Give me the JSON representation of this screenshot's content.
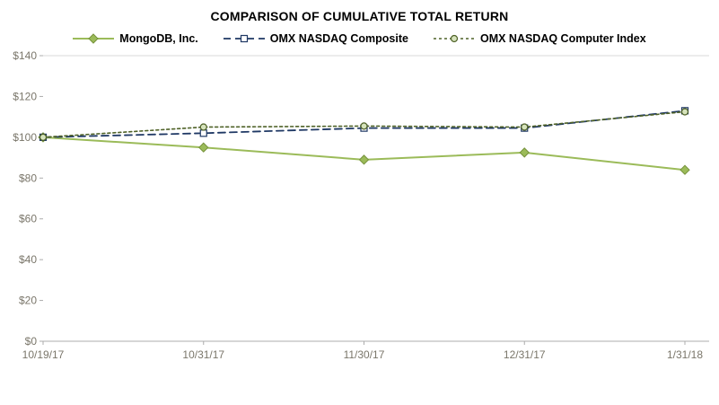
{
  "title": "COMPARISON OF CUMULATIVE TOTAL RETURN",
  "chart_data": {
    "type": "line",
    "title": "COMPARISON OF CUMULATIVE TOTAL RETURN",
    "x": [
      "10/19/17",
      "10/31/17",
      "11/30/17",
      "12/31/17",
      "1/31/18"
    ],
    "series": [
      {
        "name": "MongoDB, Inc.",
        "values": [
          100,
          95,
          89,
          92.5,
          84
        ],
        "color": "#9BBB59",
        "dash": "solid",
        "marker": "diamond",
        "marker_fill": "#9BBB59",
        "marker_stroke": "#76923C",
        "width": 2
      },
      {
        "name": "OMX NASDAQ Composite",
        "values": [
          100,
          102,
          104.5,
          104.5,
          113
        ],
        "color": "#1F3864",
        "dash": "dashed",
        "marker": "square",
        "marker_fill": "#FFFFFF",
        "marker_stroke": "#1F3864",
        "width": 1.8
      },
      {
        "name": "OMX NASDAQ Computer Index",
        "values": [
          100,
          105,
          105.5,
          105,
          112.5
        ],
        "color": "#4F6228",
        "dash": "dotted",
        "marker": "circle",
        "marker_fill": "#D6E3BC",
        "marker_stroke": "#4F6228",
        "width": 1.6
      }
    ],
    "xlabel": "",
    "ylabel": "",
    "ylim": [
      0,
      140
    ],
    "ytick_step": 20,
    "ytick_labels": [
      "$0",
      "$20",
      "$40",
      "$60",
      "$80",
      "$100",
      "$120",
      "$140"
    ],
    "grid": false,
    "legend_position": "top",
    "style": {
      "axis_text_color": "#7A766A",
      "axis_line_color": "#ACACAC",
      "tick_color": "#ACACAC",
      "top_border_color": "#D9D9D9"
    }
  }
}
